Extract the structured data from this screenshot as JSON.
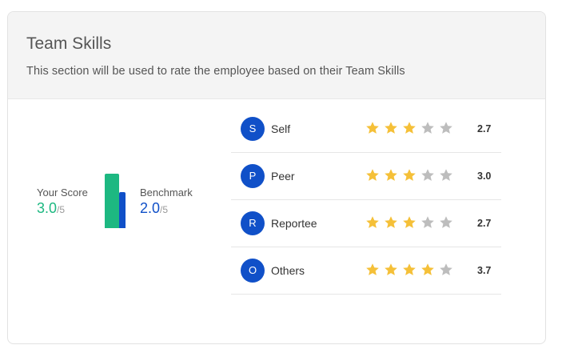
{
  "section": {
    "title": "Team Skills",
    "subtitle": "This section will be used to rate the employee based on their Team Skills"
  },
  "summary": {
    "your_score": {
      "label": "Your Score",
      "value": "3.0",
      "max": "/5",
      "fraction": 0.6
    },
    "benchmark": {
      "label": "Benchmark",
      "value": "2.0",
      "max": "/5",
      "fraction": 0.4
    }
  },
  "colors": {
    "your_score": "#1db881",
    "benchmark": "#1050c8",
    "star_filled": "#f5c038",
    "star_empty": "#bdbdbd",
    "avatar": "#1050c8"
  },
  "raters": [
    {
      "initial": "S",
      "name": "Self",
      "score": "2.7",
      "stars_filled": 3,
      "stars_total": 5
    },
    {
      "initial": "P",
      "name": "Peer",
      "score": "3.0",
      "stars_filled": 3,
      "stars_total": 5
    },
    {
      "initial": "R",
      "name": "Reportee",
      "score": "2.7",
      "stars_filled": 3,
      "stars_total": 5
    },
    {
      "initial": "O",
      "name": "Others",
      "score": "3.7",
      "stars_filled": 4,
      "stars_total": 5
    }
  ]
}
